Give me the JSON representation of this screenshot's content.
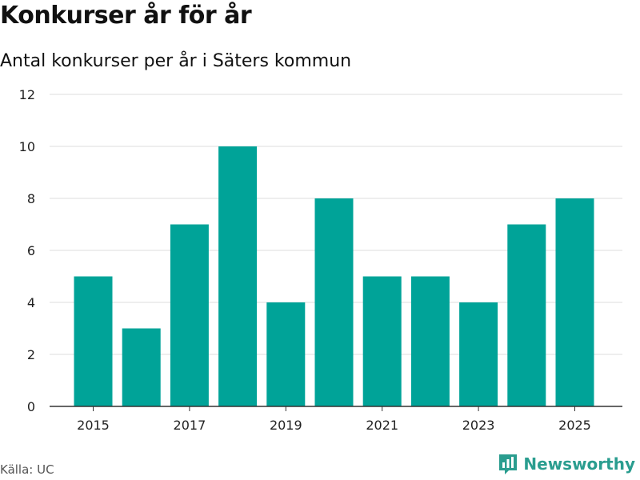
{
  "header": {
    "title": "Konkurser år för år",
    "subtitle": "Antal konkurser per år i Säters kommun"
  },
  "footer": {
    "source": "Källa: UC",
    "brand": "Newsworthy"
  },
  "colors": {
    "bar": "#00a398",
    "grid": "#dddddd",
    "axis": "#333333",
    "brand": "#2a9d8f"
  },
  "chart_data": {
    "type": "bar",
    "title": "Konkurser år för år",
    "subtitle": "Antal konkurser per år i Säters kommun",
    "xlabel": "",
    "ylabel": "",
    "categories": [
      "2015",
      "2016",
      "2017",
      "2018",
      "2019",
      "2020",
      "2021",
      "2022",
      "2023",
      "2024",
      "2025"
    ],
    "values": [
      5,
      3,
      7,
      10,
      4,
      8,
      5,
      5,
      4,
      7,
      8
    ],
    "x_tick_labels": [
      "2015",
      "2017",
      "2019",
      "2021",
      "2023",
      "2025"
    ],
    "y_ticks": [
      0,
      2,
      4,
      6,
      8,
      10,
      12
    ],
    "ylim": [
      0,
      12
    ],
    "grid": true,
    "legend": "none"
  }
}
